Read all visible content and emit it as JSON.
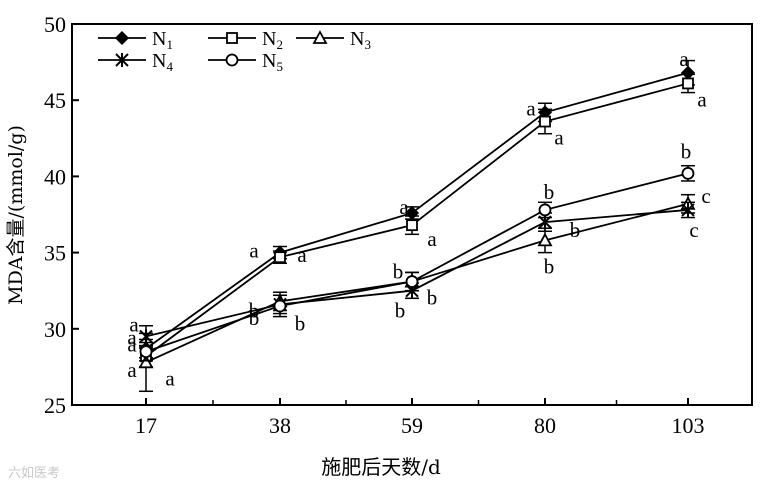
{
  "chart_data": {
    "type": "line",
    "title": "",
    "xlabel": "施肥后天数/d",
    "ylabel": "MDA含量/(mmol/g)",
    "x": [
      17,
      38,
      59,
      80,
      103
    ],
    "ylim": [
      25,
      50
    ],
    "yticks": [
      25,
      30,
      35,
      40,
      45,
      50
    ],
    "grid": false,
    "legend_position": "top-left",
    "series": [
      {
        "name": "N",
        "subscript": "1",
        "marker": "filled-diamond",
        "values": [
          28.7,
          35.0,
          37.6,
          44.2,
          46.8
        ],
        "err": [
          0.6,
          0.4,
          0.4,
          0.6,
          0.8
        ],
        "letters": [
          "a",
          "a",
          "a",
          "a",
          "a"
        ]
      },
      {
        "name": "N",
        "subscript": "2",
        "marker": "open-square",
        "values": [
          28.2,
          34.7,
          36.8,
          43.6,
          46.1
        ],
        "err": [
          0.7,
          0.4,
          0.6,
          0.8,
          0.6
        ],
        "letters": [
          "a",
          "a",
          "a",
          "a",
          "a"
        ]
      },
      {
        "name": "N",
        "subscript": "3",
        "marker": "open-triangle",
        "values": [
          27.8,
          31.8,
          33.1,
          35.8,
          38.2
        ],
        "err": [
          1.9,
          0.6,
          0.6,
          0.8,
          0.6
        ],
        "letters": [
          "a",
          "b",
          "b",
          "b",
          "c"
        ]
      },
      {
        "name": "N",
        "subscript": "4",
        "marker": "asterisk",
        "values": [
          29.5,
          31.6,
          32.5,
          37.0,
          37.8
        ],
        "err": [
          0.7,
          0.6,
          0.5,
          0.6,
          0.5
        ],
        "letters": [
          "a",
          "b",
          "b",
          "b",
          "c"
        ]
      },
      {
        "name": "N",
        "subscript": "5",
        "marker": "open-circle",
        "values": [
          28.5,
          31.5,
          33.1,
          37.8,
          40.2
        ],
        "err": [
          0.6,
          0.7,
          0.6,
          0.5,
          0.5
        ],
        "letters": [
          "a",
          "b",
          "b",
          "b",
          "b"
        ]
      }
    ]
  },
  "watermark": "六如医考"
}
